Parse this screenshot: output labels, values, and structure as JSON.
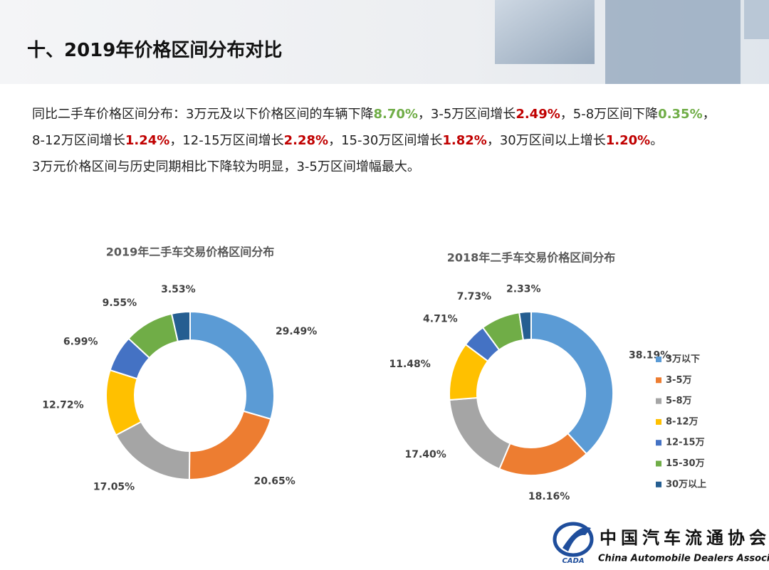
{
  "header": {
    "title": "十、2019年价格区间分布对比"
  },
  "summary": {
    "runs": [
      {
        "text": "同比二手车价格区间分布：3万元及以下价格区间的车辆下降"
      },
      {
        "text": "8.70%",
        "color": "#70ad47"
      },
      {
        "text": "，3-5万区间增长"
      },
      {
        "text": "2.49%",
        "color": "#c00000"
      },
      {
        "text": "，5-8万区间下降"
      },
      {
        "text": "0.35%",
        "color": "#70ad47"
      },
      {
        "text": "，8-12万区间增长"
      },
      {
        "text": "1.24%",
        "color": "#c00000"
      },
      {
        "text": "，12-15万区间增长"
      },
      {
        "text": "2.28%",
        "color": "#c00000"
      },
      {
        "text": "，15-30万区间增长"
      },
      {
        "text": "1.82%",
        "color": "#c00000"
      },
      {
        "text": "，30万区间以上增长"
      },
      {
        "text": "1.20%",
        "color": "#c00000"
      },
      {
        "text": "。"
      }
    ],
    "conclusion": "3万元价格区间与历史同期相比下降较为明显，3-5万区间增幅最大。"
  },
  "chart_data": [
    {
      "type": "donut",
      "title": "2019年二手车交易价格区间分布",
      "values": [
        29.49,
        20.65,
        17.05,
        12.72,
        6.99,
        9.55,
        3.53
      ],
      "value_labels": [
        "29.49%",
        "20.65%",
        "17.05%",
        "12.72%",
        "6.99%",
        "9.55%",
        "3.53%"
      ],
      "colors": [
        "#5b9bd5",
        "#ed7d31",
        "#a5a5a5",
        "#ffc000",
        "#4472c4",
        "#70ad47",
        "#255e91"
      ]
    },
    {
      "type": "donut",
      "title": "2018年二手车交易价格区间分布",
      "categories": [
        "3万以下",
        "3-5万",
        "5-8万",
        "8-12万",
        "12-15万",
        "15-30万",
        "30万以上"
      ],
      "values": [
        38.19,
        18.16,
        17.4,
        11.48,
        4.71,
        7.73,
        2.33
      ],
      "value_labels": [
        "38.19%",
        "18.16%",
        "17.40%",
        "11.48%",
        "4.71%",
        "7.73%",
        "2.33%"
      ],
      "colors": [
        "#5b9bd5",
        "#ed7d31",
        "#a5a5a5",
        "#ffc000",
        "#4472c4",
        "#70ad47",
        "#255e91"
      ],
      "legend": "right"
    }
  ],
  "logo": {
    "name": "中国汽车流通协会",
    "english": "China Automobile Dealers Association",
    "abbr": "CADA"
  }
}
